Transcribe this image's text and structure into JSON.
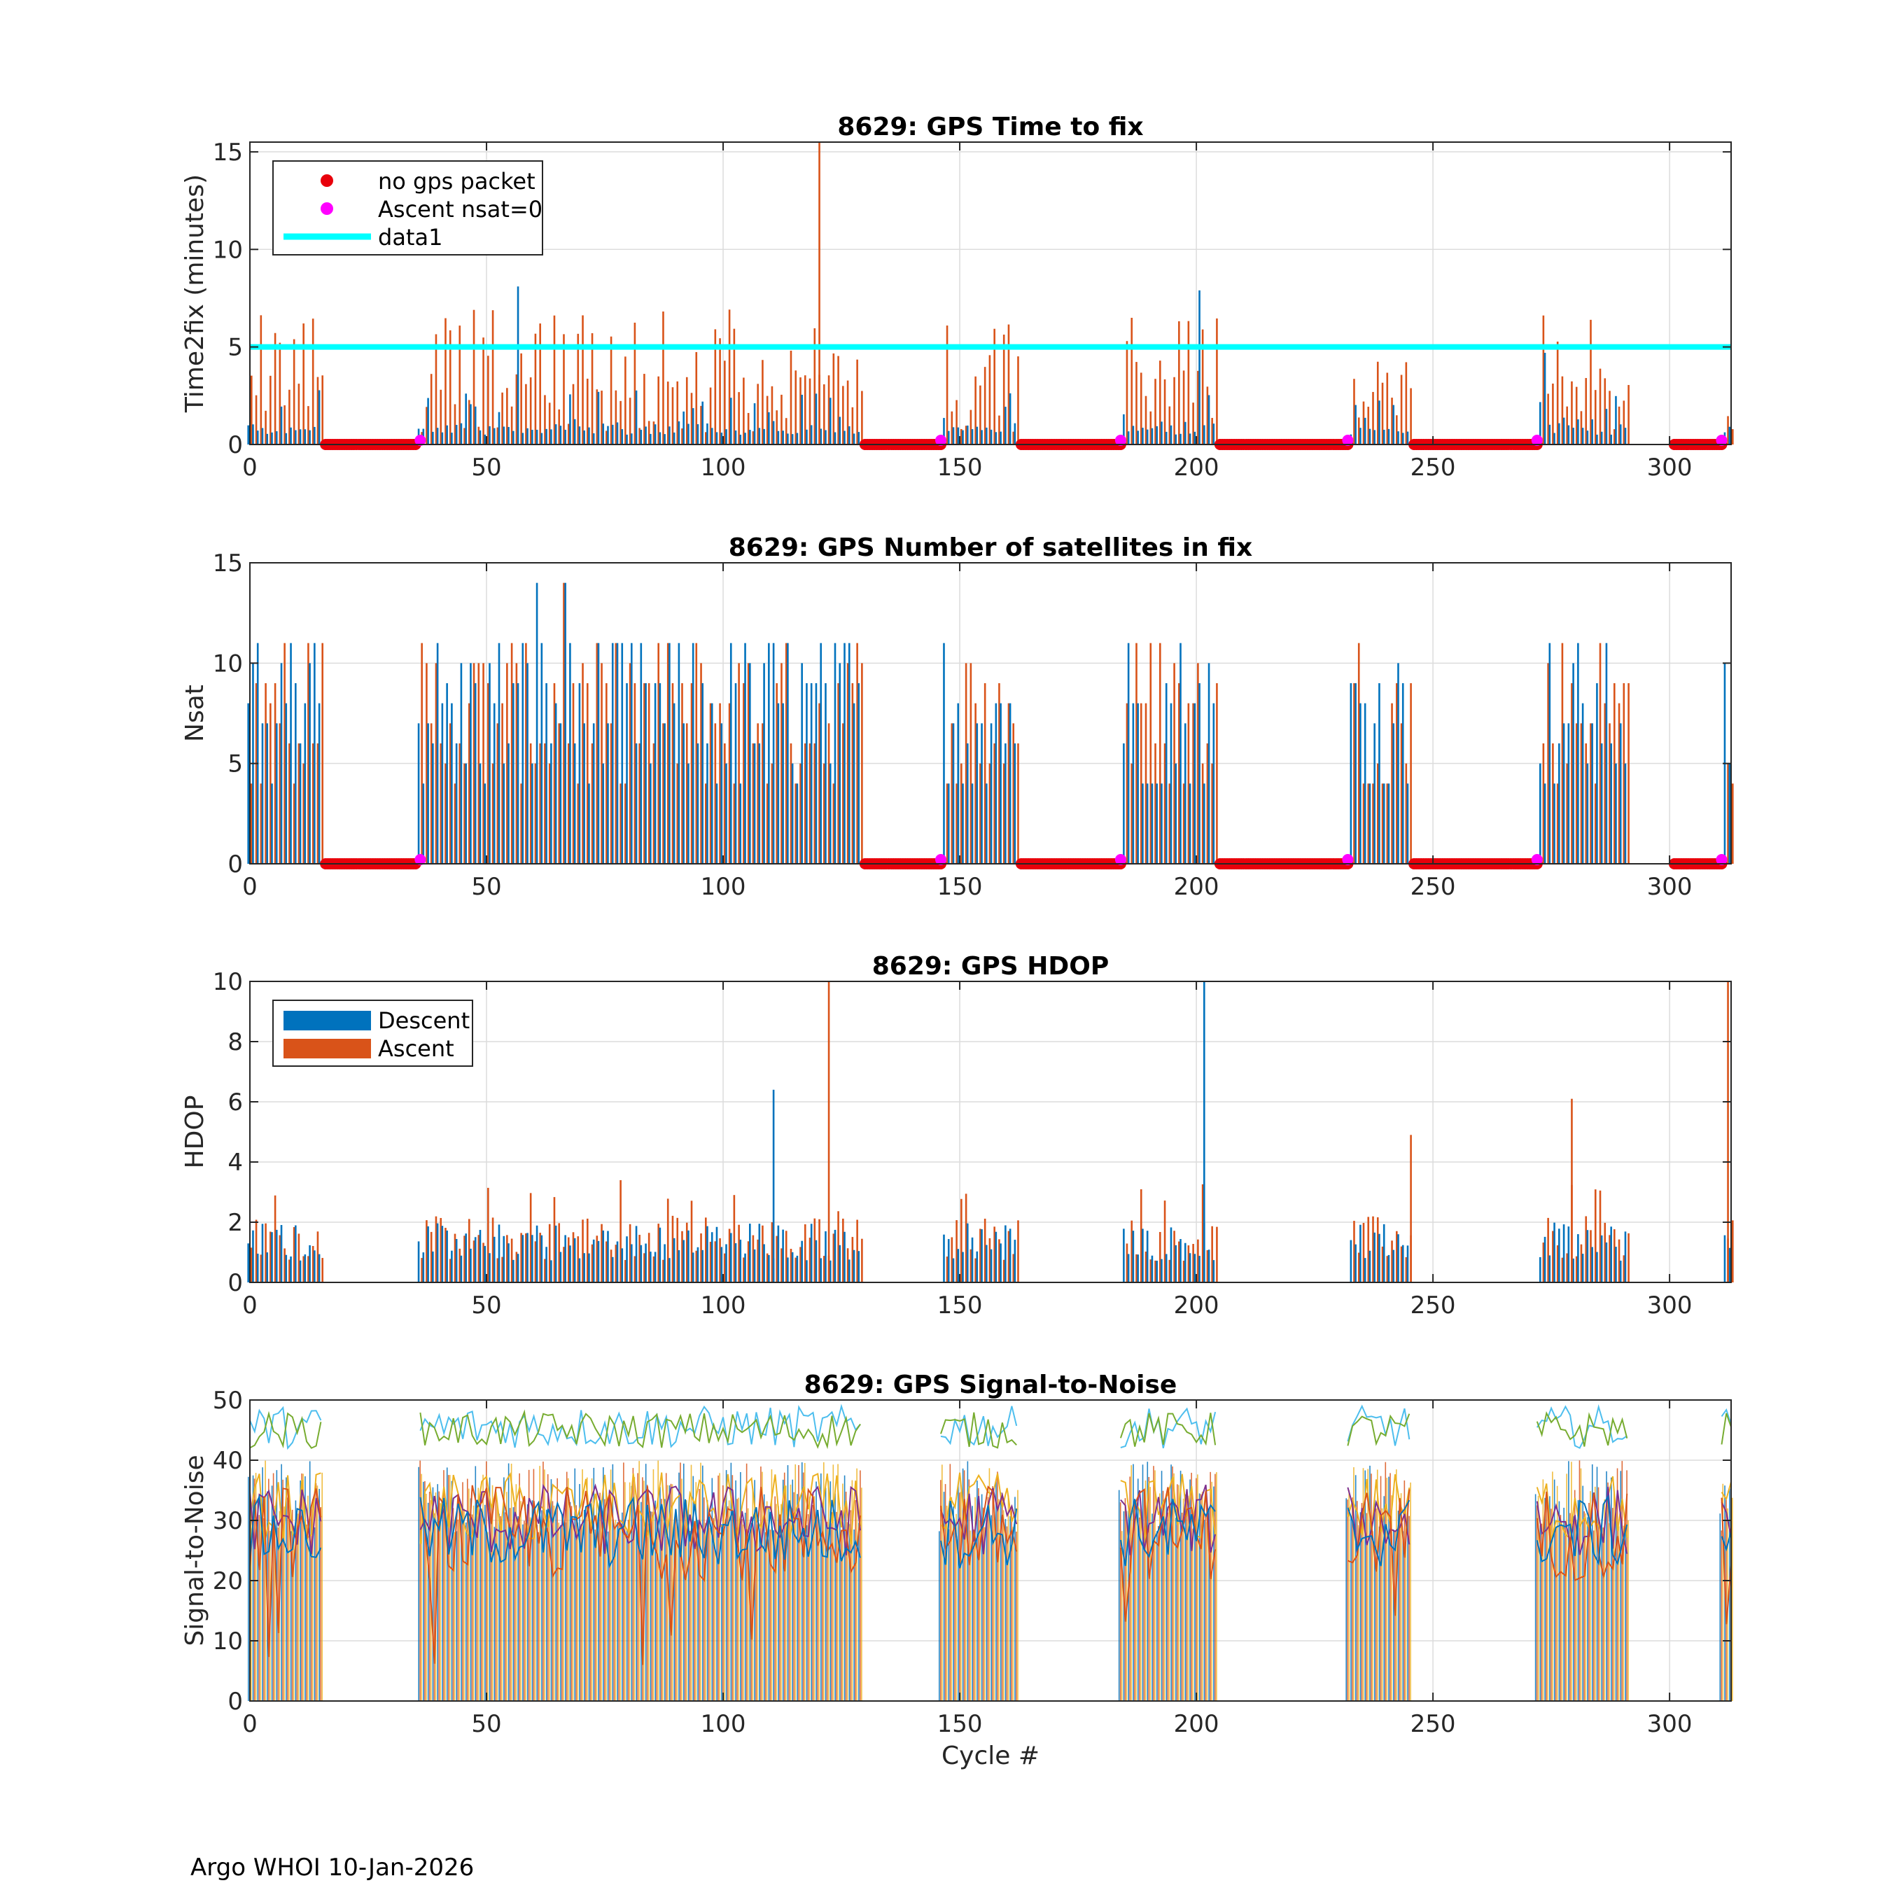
{
  "footer": "Argo WHOI 10-Jan-2026",
  "colors": {
    "descent": "#0072bd",
    "ascent": "#d95319",
    "no_gps": "#e8000b",
    "nsat_zero": "#ff00ff",
    "data1": "#00ffff",
    "snr_lines": [
      "#0072bd",
      "#d95319",
      "#edb120",
      "#7e2f8e",
      "#77ac30",
      "#4dbeee",
      "#a2142f"
    ]
  },
  "chart_data": [
    {
      "type": "bar",
      "title": "8629: GPS Time to fix",
      "xlabel": "",
      "ylabel": "Time2fix (minutes)",
      "xlim": [
        0,
        313
      ],
      "ylim": [
        0,
        15.5
      ],
      "xticks": [
        "0",
        "50",
        "100",
        "150",
        "200",
        "250",
        "300"
      ],
      "yticks": [
        "0",
        "5",
        "10",
        "15"
      ],
      "grid": true,
      "legend": {
        "position": "top-left",
        "entries": [
          "no gps packet",
          "Ascent nsat=0",
          "data1"
        ]
      },
      "reference_line": {
        "name": "data1",
        "y": 5
      },
      "gaps": [
        [
          16,
          35
        ],
        [
          130,
          146
        ],
        [
          163,
          184
        ],
        [
          205,
          232
        ],
        [
          246,
          272
        ],
        [
          301,
          311
        ]
      ],
      "gap_markers_nsat0": [
        36,
        146,
        184,
        232,
        272,
        311
      ],
      "max_spike": {
        "x": 120,
        "y": 15.5
      }
    },
    {
      "type": "bar",
      "title": "8629: GPS Number of satellites in fix",
      "xlabel": "",
      "ylabel": "Nsat",
      "xlim": [
        0,
        313
      ],
      "ylim": [
        0,
        15
      ],
      "xticks": [
        "0",
        "50",
        "100",
        "150",
        "200",
        "250",
        "300"
      ],
      "yticks": [
        "0",
        "5",
        "10",
        "15"
      ],
      "grid": true,
      "gaps": [
        [
          16,
          35
        ],
        [
          130,
          146
        ],
        [
          163,
          184
        ],
        [
          205,
          232
        ],
        [
          246,
          272
        ],
        [
          301,
          311
        ]
      ],
      "gap_markers_nsat0": [
        36,
        146,
        184,
        232,
        272,
        311
      ],
      "max_value": 14
    },
    {
      "type": "bar",
      "title": "8629: GPS HDOP",
      "xlabel": "",
      "ylabel": "HDOP",
      "xlim": [
        0,
        313
      ],
      "ylim": [
        0,
        10
      ],
      "xticks": [
        "0",
        "50",
        "100",
        "150",
        "200",
        "250",
        "300"
      ],
      "yticks": [
        "0",
        "2",
        "4",
        "6",
        "8",
        "10"
      ],
      "grid": true,
      "legend": {
        "position": "top-left",
        "entries": [
          "Descent",
          "Ascent"
        ]
      },
      "spikes": [
        {
          "x": 122,
          "y": 10,
          "series": "Ascent"
        },
        {
          "x": 202,
          "y": 10,
          "series": "Descent"
        },
        {
          "x": 111,
          "y": 6.4,
          "series": "Descent"
        },
        {
          "x": 279,
          "y": 6.1,
          "series": "Ascent"
        },
        {
          "x": 245,
          "y": 4.9,
          "series": "Ascent"
        },
        {
          "x": 312,
          "y": 10,
          "series": "Ascent"
        }
      ]
    },
    {
      "type": "line",
      "title": "8629: GPS Signal-to-Noise",
      "xlabel": "Cycle #",
      "ylabel": "Signal-to-Noise",
      "xlim": [
        0,
        313
      ],
      "ylim": [
        0,
        50
      ],
      "xticks": [
        "0",
        "50",
        "100",
        "150",
        "200",
        "250",
        "300"
      ],
      "yticks": [
        "0",
        "10",
        "20",
        "30",
        "40",
        "50"
      ],
      "grid": true,
      "segments": [
        [
          0,
          15
        ],
        [
          36,
          129
        ],
        [
          146,
          162
        ],
        [
          184,
          204
        ],
        [
          232,
          245
        ],
        [
          272,
          291
        ],
        [
          311,
          313
        ]
      ],
      "levels": {
        "high": [
          42,
          48
        ],
        "mid": [
          28,
          38
        ],
        "low": [
          20,
          34
        ]
      }
    }
  ]
}
